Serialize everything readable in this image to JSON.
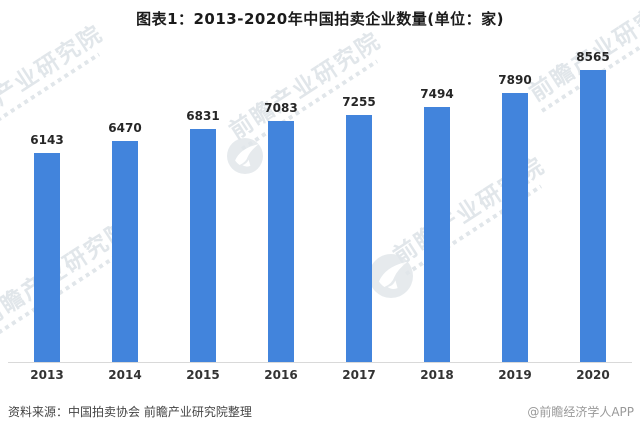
{
  "chart_data": {
    "type": "bar",
    "title": "图表1：2013-2020年中国拍卖企业数量(单位：家)",
    "categories": [
      "2013",
      "2014",
      "2015",
      "2016",
      "2017",
      "2018",
      "2019",
      "2020"
    ],
    "values": [
      6143,
      6470,
      6831,
      7083,
      7255,
      7494,
      7890,
      8565
    ],
    "xlabel": "",
    "ylabel": "",
    "unit": "家",
    "ylim": [
      0,
      8800
    ],
    "grid": false,
    "legend": null,
    "value_labels_shown": true,
    "bar_color": "#4284dc"
  },
  "footer": {
    "source": "资料来源：中国拍卖协会 前瞻产业研究院整理",
    "credit": "@前瞻经济学人APP"
  },
  "watermark": {
    "text": "前瞻产业研究院",
    "logo": "qianzhan-bird-logo"
  },
  "colors": {
    "bar": "#4284dc",
    "axis_line": "#d9d9d9",
    "title_text": "#1a1a1a",
    "value_text": "#262626",
    "axis_text": "#333333",
    "source_text": "#444444",
    "credit_text": "#999999",
    "watermark": "#c9d3da"
  }
}
